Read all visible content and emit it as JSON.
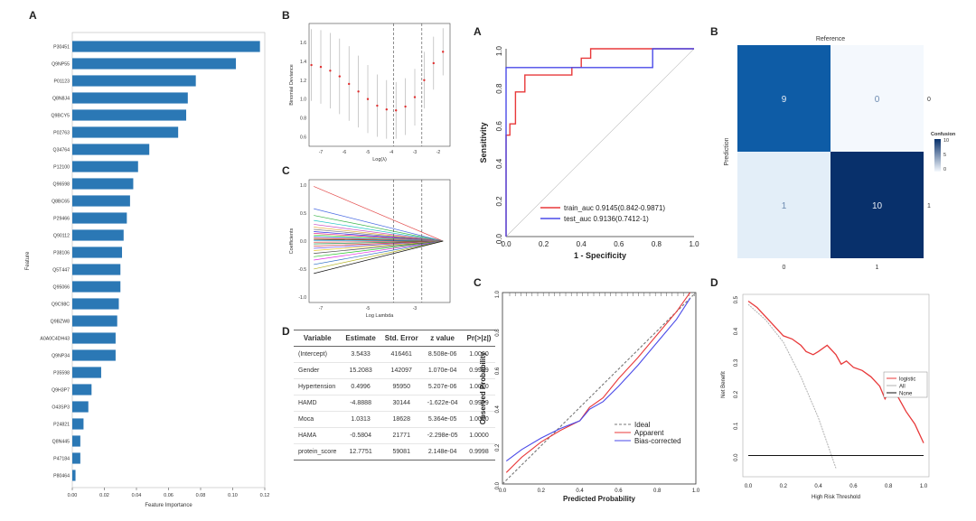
{
  "panels": {
    "importance_label": "A",
    "lasso_dev_label": "B",
    "lasso_coef_label": "C",
    "table_label": "D",
    "roc_label": "A",
    "confusion_label": "B",
    "calibration_label": "C",
    "dca_label": "D"
  },
  "chart_data": [
    {
      "id": "feature_importance",
      "type": "bar",
      "orientation": "horizontal",
      "xlabel": "Feature Importance",
      "ylabel": "Feature",
      "xlim": [
        0,
        0.12
      ],
      "xticks": [
        "0.00",
        "0.02",
        "0.04",
        "0.06",
        "0.08",
        "0.10",
        "0.12"
      ],
      "categories": [
        "P30451",
        "Q9NP55",
        "P01123",
        "Q8N8J4",
        "Q9BCY5",
        "P02763",
        "Q34764",
        "P12100",
        "Q96598",
        "Q8BC65",
        "P29466",
        "Q90112",
        "P38106",
        "Q5T447",
        "Q95066",
        "Q9C98C",
        "Q9BZW8",
        "A0A0C4DH43",
        "Q9NP34",
        "P35598",
        "Q9H3P7",
        "O43SP3",
        "P24821",
        "Q8N445",
        "P47184",
        "P80464"
      ],
      "values": [
        0.117,
        0.102,
        0.077,
        0.072,
        0.071,
        0.066,
        0.048,
        0.041,
        0.038,
        0.036,
        0.034,
        0.032,
        0.031,
        0.03,
        0.03,
        0.029,
        0.028,
        0.027,
        0.027,
        0.018,
        0.012,
        0.01,
        0.007,
        0.005,
        0.005,
        0.002
      ]
    },
    {
      "id": "lasso_deviance",
      "type": "scatter",
      "xlabel": "Log(λ)",
      "ylabel": "Binomial Deviance",
      "xlim": [
        -7.5,
        -1.5
      ],
      "ylim": [
        0.5,
        1.8
      ],
      "xticks": [
        -7,
        -6,
        -5,
        -4,
        -3,
        -2
      ],
      "yticks": [
        0.6,
        0.8,
        1.0,
        1.2,
        1.4,
        1.6
      ],
      "x": [
        -7.4,
        -7.0,
        -6.6,
        -6.2,
        -5.8,
        -5.4,
        -5.0,
        -4.6,
        -4.2,
        -3.8,
        -3.4,
        -3.0,
        -2.6,
        -2.2,
        -1.8
      ],
      "y": [
        1.36,
        1.34,
        1.3,
        1.24,
        1.16,
        1.08,
        1.0,
        0.93,
        0.89,
        0.88,
        0.92,
        1.02,
        1.2,
        1.38,
        1.5
      ],
      "lower": [
        0.98,
        0.95,
        0.9,
        0.84,
        0.77,
        0.7,
        0.64,
        0.6,
        0.58,
        0.58,
        0.62,
        0.72,
        0.9,
        1.1,
        1.25
      ],
      "upper": [
        1.74,
        1.73,
        1.7,
        1.64,
        1.56,
        1.46,
        1.36,
        1.26,
        1.2,
        1.18,
        1.22,
        1.32,
        1.5,
        1.66,
        1.75
      ],
      "vlines": [
        -3.9,
        -2.7
      ]
    },
    {
      "id": "lasso_coefficients",
      "type": "line",
      "xlabel": "Log Lambda",
      "ylabel": "Coefficients",
      "xlim": [
        -7.5,
        -1.5
      ],
      "ylim": [
        -1.1,
        1.1
      ],
      "xticks": [
        -7,
        -5,
        -3
      ],
      "yticks": [
        -1.0,
        -0.5,
        0.0,
        0.5,
        1.0
      ],
      "start_values": [
        0.98,
        0.58,
        0.46,
        0.37,
        0.3,
        0.25,
        0.21,
        0.17,
        0.14,
        0.11,
        0.09,
        0.07,
        0.05,
        0.03,
        0.01,
        -0.02,
        -0.05,
        -0.09,
        -0.13,
        -0.17,
        -0.22,
        -0.28,
        -0.34,
        -0.42,
        -0.5,
        -0.58
      ],
      "colors": [
        "#e34a4a",
        "#4a6be3",
        "#3ab54a",
        "#22c4c4",
        "#c44ac4",
        "#e3a12a",
        "#7a7a7a",
        "#2a2ae3",
        "#e32a8a",
        "#8ac42a",
        "#2ae3c4",
        "#a14ae3",
        "#e37a2a",
        "#222222",
        "#4ab5e3",
        "#e34a4a",
        "#2a8a4a",
        "#c42a2a",
        "#6b4ae3",
        "#e3c42a",
        "#4a4a4a",
        "#2ac42a",
        "#e32ae3",
        "#2a6bc4",
        "#b5b52a",
        "#111111"
      ],
      "vlines": [
        -3.9,
        -2.7
      ]
    },
    {
      "id": "coef_table",
      "type": "table",
      "columns": [
        "Variable",
        "Estimate",
        "Std. Error",
        "z value",
        "Pr(>|z|)"
      ],
      "rows": [
        [
          "(Intercept)",
          "3.5433",
          "416461",
          "8.508e-06",
          "1.0000"
        ],
        [
          "Gender",
          "15.2083",
          "142097",
          "1.070e-04",
          "0.9999"
        ],
        [
          "Hypertension",
          "0.4996",
          "95950",
          "5.207e-06",
          "1.0000"
        ],
        [
          "HAMD",
          "-4.8888",
          "30144",
          "-1.622e-04",
          "0.9999"
        ],
        [
          "Moca",
          "1.0313",
          "18628",
          "5.364e-05",
          "1.0000"
        ],
        [
          "HAMA",
          "-0.5804",
          "21771",
          "-2.298e-05",
          "1.0000"
        ],
        [
          "protein_score",
          "12.7751",
          "59081",
          "2.148e-04",
          "0.9998"
        ]
      ]
    },
    {
      "id": "roc",
      "type": "line",
      "xlabel": "1 - Specificity",
      "ylabel": "Sensitivity",
      "xlim": [
        0,
        1
      ],
      "ylim": [
        0,
        1
      ],
      "xticks": [
        "0.0",
        "0.2",
        "0.4",
        "0.6",
        "0.8",
        "1.0"
      ],
      "yticks": [
        "0.0",
        "0.2",
        "0.4",
        "0.6",
        "0.8",
        "1.0"
      ],
      "series": [
        {
          "name": "train_auc  0.9145(0.842-0.9871)",
          "color": "#e8393a",
          "x": [
            0,
            0,
            0.02,
            0.02,
            0.05,
            0.05,
            0.1,
            0.1,
            0.35,
            0.35,
            0.4,
            0.4,
            0.45,
            0.45,
            0.78,
            0.78,
            1.0
          ],
          "y": [
            0,
            0.54,
            0.54,
            0.6,
            0.6,
            0.77,
            0.77,
            0.86,
            0.86,
            0.9,
            0.9,
            0.95,
            0.95,
            1.0,
            1.0,
            1.0,
            1.0
          ]
        },
        {
          "name": "test_auc  0.9136(0.7412-1)",
          "color": "#4a4ae8",
          "x": [
            0,
            0,
            0.02,
            0.02,
            0.78,
            0.78,
            1.0
          ],
          "y": [
            0,
            0.9,
            0.9,
            0.9,
            0.9,
            1.0,
            1.0
          ]
        }
      ]
    },
    {
      "id": "confusion",
      "type": "heatmap",
      "title": "Reference",
      "ylabel": "Prediction",
      "col_labels": [
        "0",
        "1"
      ],
      "row_labels": [
        "0",
        "1"
      ],
      "values": [
        [
          9,
          0
        ],
        [
          1,
          10
        ]
      ],
      "colors": [
        [
          "#0e5ca6",
          "#f4f8fd"
        ],
        [
          "#e3eef8",
          "#08306b"
        ]
      ],
      "legend_title": "Confusion",
      "legend_ticks": [
        "10",
        "5",
        "0"
      ]
    },
    {
      "id": "calibration",
      "type": "line",
      "xlabel": "Predicted Probability",
      "ylabel": "Observed Probability",
      "xlim": [
        0,
        1
      ],
      "ylim": [
        0,
        1
      ],
      "xticks": [
        "0.0",
        "0.2",
        "0.4",
        "0.6",
        "0.8",
        "1.0"
      ],
      "yticks": [
        "0.0",
        "0.2",
        "0.4",
        "0.6",
        "0.8",
        "1.0"
      ],
      "series": [
        {
          "name": "Ideal",
          "color": "#777777",
          "dash": true,
          "x": [
            0,
            1
          ],
          "y": [
            0,
            1
          ]
        },
        {
          "name": "Apparent",
          "color": "#e8393a",
          "dash": false,
          "x": [
            0.02,
            0.1,
            0.2,
            0.3,
            0.4,
            0.45,
            0.52,
            0.6,
            0.7,
            0.8,
            0.9,
            0.97
          ],
          "y": [
            0.06,
            0.14,
            0.22,
            0.28,
            0.33,
            0.4,
            0.45,
            0.55,
            0.66,
            0.78,
            0.9,
            1.0
          ]
        },
        {
          "name": "Bias-corrected",
          "color": "#4a4ae8",
          "dash": false,
          "x": [
            0.02,
            0.1,
            0.2,
            0.3,
            0.4,
            0.45,
            0.52,
            0.6,
            0.7,
            0.8,
            0.9,
            0.97
          ],
          "y": [
            0.12,
            0.18,
            0.24,
            0.29,
            0.33,
            0.39,
            0.43,
            0.51,
            0.62,
            0.74,
            0.86,
            0.97
          ]
        }
      ]
    },
    {
      "id": "dca",
      "type": "line",
      "xlabel": "High Risk Threshold",
      "ylabel": "Net Benefit",
      "xlim": [
        0,
        1
      ],
      "ylim": [
        -0.05,
        0.5
      ],
      "xticks": [
        "0.0",
        "0.2",
        "0.4",
        "0.6",
        "0.8",
        "1.0"
      ],
      "yticks": [
        "0.0",
        "0.1",
        "0.2",
        "0.3",
        "0.4",
        "0.5"
      ],
      "series": [
        {
          "name": "logistic",
          "color": "#e8393a",
          "x": [
            0,
            0.05,
            0.1,
            0.15,
            0.2,
            0.25,
            0.3,
            0.33,
            0.37,
            0.4,
            0.45,
            0.5,
            0.53,
            0.56,
            0.6,
            0.65,
            0.7,
            0.75,
            0.78,
            0.8,
            0.85,
            0.9,
            0.95,
            1.0
          ],
          "y": [
            0.49,
            0.47,
            0.44,
            0.41,
            0.38,
            0.37,
            0.35,
            0.33,
            0.32,
            0.33,
            0.35,
            0.32,
            0.29,
            0.3,
            0.28,
            0.27,
            0.25,
            0.22,
            0.18,
            0.2,
            0.19,
            0.14,
            0.1,
            0.04
          ]
        },
        {
          "name": "All",
          "color": "#b0b0b0",
          "x": [
            0,
            0.1,
            0.2,
            0.3,
            0.4,
            0.45,
            0.5
          ],
          "y": [
            0.48,
            0.43,
            0.36,
            0.25,
            0.12,
            0.04,
            -0.04
          ]
        },
        {
          "name": "None",
          "color": "#111111",
          "x": [
            0,
            1.0
          ],
          "y": [
            0,
            0
          ]
        }
      ]
    }
  ]
}
